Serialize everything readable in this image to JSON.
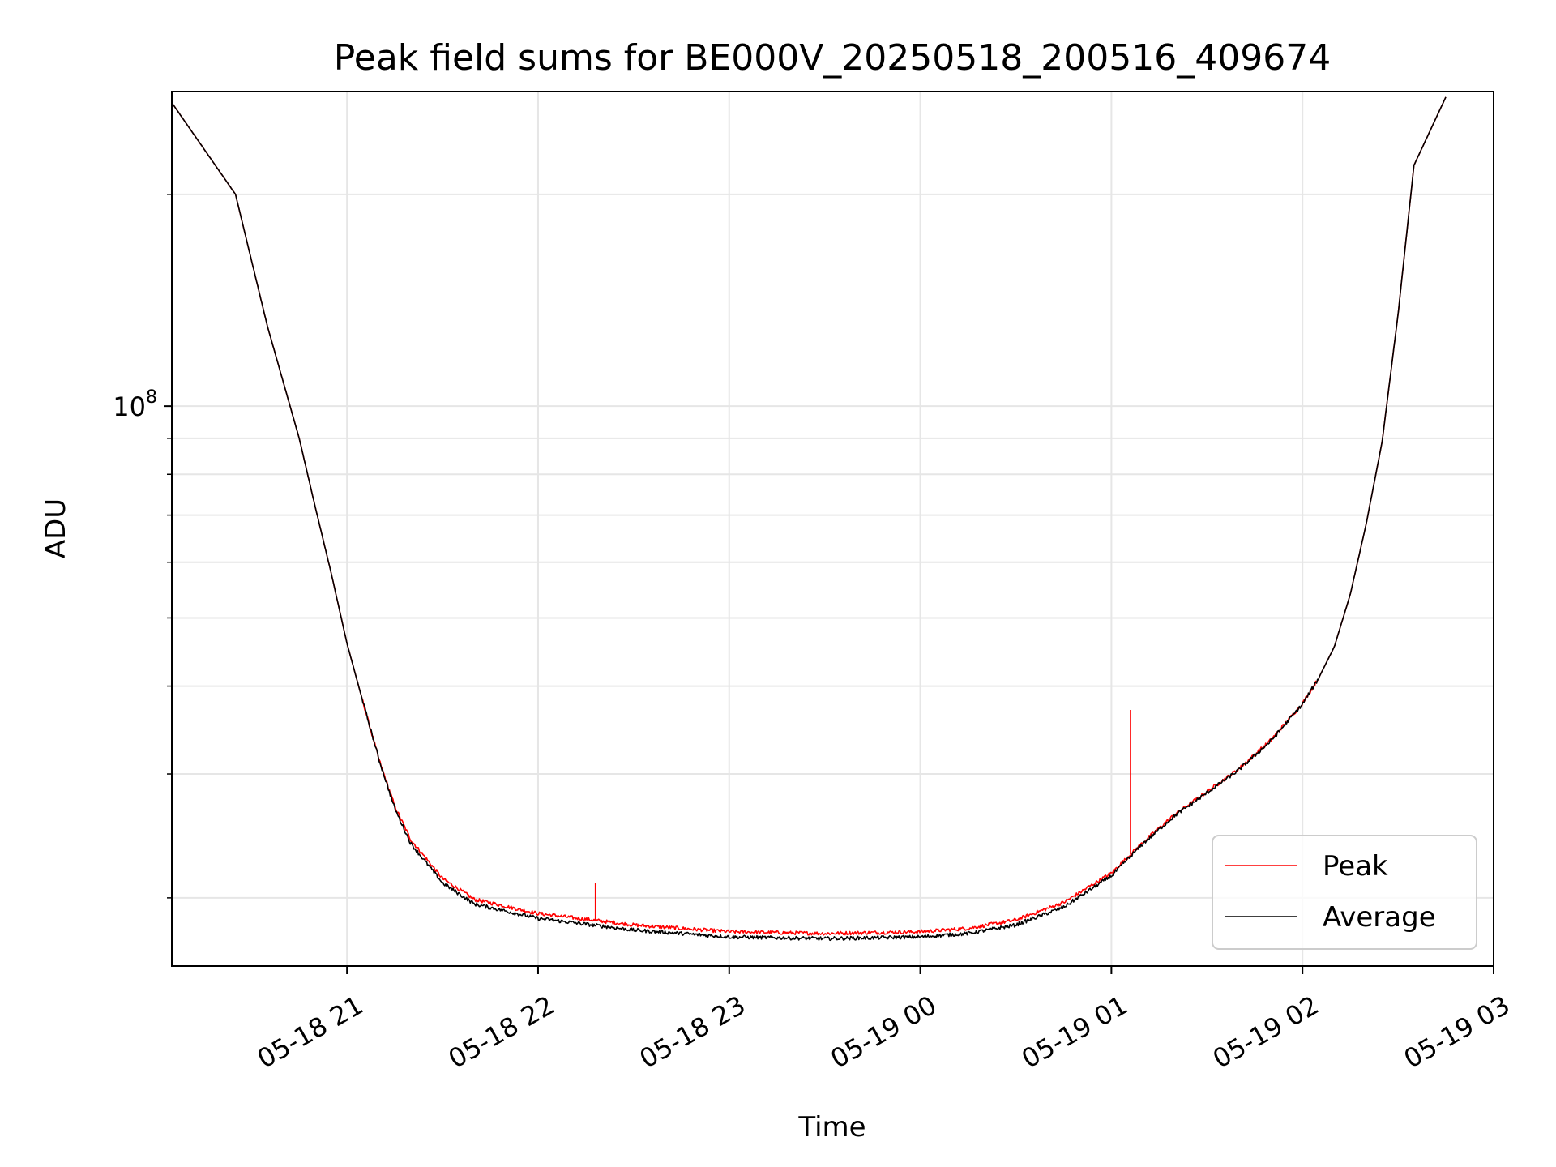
{
  "chart_data": {
    "type": "line",
    "title": "Peak field sums for BE000V_20250518_200516_409674",
    "xlabel": "Time",
    "ylabel": "ADU",
    "yscale": "log",
    "grid": true,
    "legend_position": "lower right",
    "x_ticks": [
      "05-18 21",
      "05-18 22",
      "05-18 23",
      "05-19 00",
      "05-19 01",
      "05-19 02",
      "05-19 03"
    ],
    "y_tick_major": {
      "value": 100000000,
      "base": "10",
      "exponent": "8"
    },
    "y_minor_ticks": [
      20000000,
      30000000,
      40000000,
      50000000,
      60000000,
      70000000,
      80000000,
      90000000,
      200000000
    ],
    "xlim": [
      "2025-05-18T20:05",
      "2025-05-19T03:00"
    ],
    "ylim": [
      16000000,
      280000000
    ],
    "x": [
      "2025-05-18T20:05",
      "2025-05-18T20:25",
      "2025-05-18T20:35",
      "2025-05-18T20:45",
      "2025-05-18T20:50",
      "2025-05-18T20:55",
      "2025-05-18T21:00",
      "2025-05-18T21:05",
      "2025-05-18T21:10",
      "2025-05-18T21:15",
      "2025-05-18T21:20",
      "2025-05-18T21:30",
      "2025-05-18T21:40",
      "2025-05-18T22:00",
      "2025-05-18T22:30",
      "2025-05-18T23:00",
      "2025-05-18T23:30",
      "2025-05-19T00:00",
      "2025-05-19T00:15",
      "2025-05-19T00:30",
      "2025-05-19T00:45",
      "2025-05-19T01:00",
      "2025-05-19T01:10",
      "2025-05-19T01:20",
      "2025-05-19T01:30",
      "2025-05-19T01:40",
      "2025-05-19T01:50",
      "2025-05-19T02:00",
      "2025-05-19T02:05",
      "2025-05-19T02:10",
      "2025-05-19T02:15",
      "2025-05-19T02:20",
      "2025-05-19T02:25",
      "2025-05-19T02:30",
      "2025-05-19T02:35",
      "2025-05-19T02:45"
    ],
    "series": [
      {
        "name": "Peak",
        "color": "#ff0000",
        "values": [
          270000000,
          200000000,
          130000000,
          90000000,
          72000000,
          58000000,
          46000000,
          38000000,
          31500000,
          27000000,
          24200000,
          21300000,
          19900000,
          19000000,
          18300000,
          17900000,
          17800000,
          17900000,
          18100000,
          18600000,
          19700000,
          21700000,
          24000000,
          26300000,
          28300000,
          30500000,
          33500000,
          37800000,
          41000000,
          45500000,
          54000000,
          68000000,
          89000000,
          135000000,
          220000000,
          275000000
        ],
        "spikes": [
          {
            "x": "2025-05-18T22:18",
            "value": 21000000
          },
          {
            "x": "2025-05-19T01:06",
            "value": 37000000
          }
        ]
      },
      {
        "name": "Average",
        "color": "#000000",
        "values": [
          270000000,
          200000000,
          130000000,
          90000000,
          72000000,
          58000000,
          46000000,
          38000000,
          31500000,
          26800000,
          23900000,
          21000000,
          19600000,
          18700000,
          18000000,
          17600000,
          17500000,
          17600000,
          17800000,
          18300000,
          19400000,
          21500000,
          23900000,
          26200000,
          28200000,
          30400000,
          33400000,
          37700000,
          41000000,
          45500000,
          54000000,
          68000000,
          89000000,
          135000000,
          220000000,
          275000000
        ]
      }
    ]
  }
}
